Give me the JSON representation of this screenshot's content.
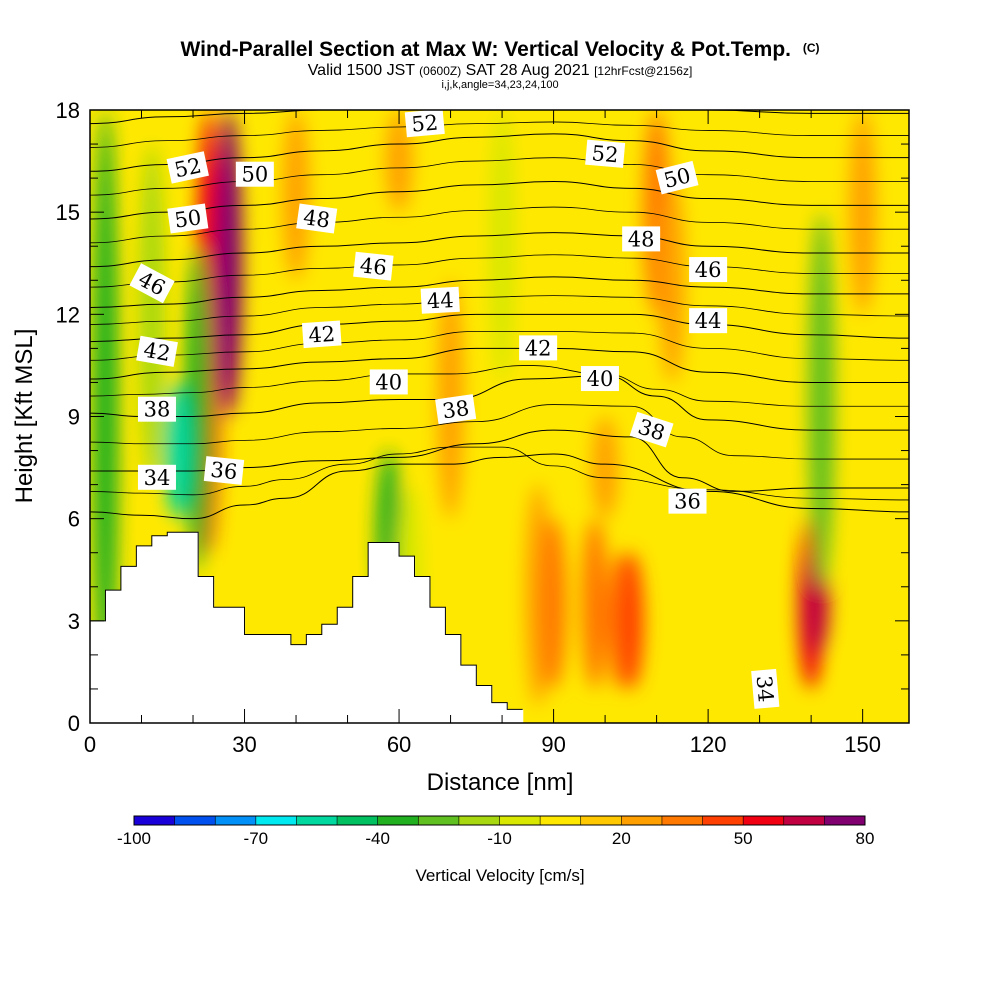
{
  "chart_data": {
    "type": "heatmap",
    "title": "Wind-Parallel Section at Max W: Vertical Velocity & Pot.Temp.",
    "title_mark": "(C)",
    "subtitle_parts": {
      "valid": "Valid 1500 JST",
      "utc": "(0600Z)",
      "date": "SAT 28 Aug 2021",
      "forecast": "[12hrFcst@2156z]"
    },
    "subtitle2": "i,j,k,angle=34,23,24,100",
    "xlabel": "Distance [nm]",
    "ylabel": "Height [Kft MSL]",
    "xlim": [
      0,
      159
    ],
    "ylim": [
      0,
      18
    ],
    "x_ticks": [
      0,
      30,
      60,
      90,
      120,
      150
    ],
    "y_ticks": [
      0,
      3,
      6,
      9,
      12,
      15,
      18
    ],
    "colorbar": {
      "label": "Vertical Velocity [cm/s]",
      "boundaries": [
        -100,
        -90,
        -80,
        -70,
        -60,
        -50,
        -40,
        -30,
        -20,
        -10,
        0,
        10,
        20,
        30,
        40,
        50,
        60,
        70,
        80
      ],
      "tick_labels": [
        "-100",
        "-70",
        "-40",
        "-10",
        "20",
        "50",
        "80"
      ],
      "colors": [
        "#1a00d8",
        "#0050f0",
        "#0090f8",
        "#00e8f0",
        "#00d8a0",
        "#00c060",
        "#20b020",
        "#60c020",
        "#a8d810",
        "#d8e800",
        "#ffe800",
        "#ffc800",
        "#ffa000",
        "#ff7800",
        "#ff4000",
        "#f00010",
        "#c00040",
        "#800070"
      ]
    },
    "background_level": "0 to 10 cm/s",
    "vertical_velocity_features": [
      {
        "x": 3,
        "z_range": [
          0.5,
          18
        ],
        "w": -40
      },
      {
        "x": 12,
        "z_range": [
          7,
          17
        ],
        "w": -20
      },
      {
        "x": 23,
        "z_range": [
          5,
          18
        ],
        "w": 50
      },
      {
        "x": 27,
        "z_range": [
          9,
          18
        ],
        "w": 70
      },
      {
        "x": 21,
        "z_range": [
          4.5,
          14
        ],
        "w": -40
      },
      {
        "x": 17,
        "z_range": [
          6,
          10
        ],
        "w": -60
      },
      {
        "x": 58,
        "z_range": [
          3,
          8
        ],
        "w": -40
      },
      {
        "x": 62,
        "z_range": [
          1,
          7
        ],
        "w": -10
      },
      {
        "x": 40,
        "z_range": [
          13,
          18
        ],
        "w": 20
      },
      {
        "x": 60,
        "z_range": [
          15,
          18
        ],
        "w": 20
      },
      {
        "x": 70,
        "z_range": [
          6,
          13
        ],
        "w": 20
      },
      {
        "x": 80,
        "z_range": [
          10,
          18
        ],
        "w": -10
      },
      {
        "x": 87,
        "z_range": [
          0.5,
          7
        ],
        "w": 20
      },
      {
        "x": 90,
        "z_range": [
          1,
          6
        ],
        "w": 30
      },
      {
        "x": 98,
        "z_range": [
          1,
          6
        ],
        "w": 30
      },
      {
        "x": 103,
        "z_range": [
          1,
          5
        ],
        "w": 30
      },
      {
        "x": 100,
        "z_range": [
          6,
          9
        ],
        "w": 20
      },
      {
        "x": 105,
        "z_range": [
          1,
          5
        ],
        "w": 40
      },
      {
        "x": 110,
        "z_range": [
          12,
          18
        ],
        "w": 30
      },
      {
        "x": 113,
        "z_range": [
          10,
          16
        ],
        "w": 20
      },
      {
        "x": 140,
        "z_range": [
          1,
          6
        ],
        "w": 50
      },
      {
        "x": 141,
        "z_range": [
          2,
          5
        ],
        "w": 60
      },
      {
        "x": 142,
        "z_range": [
          4,
          15
        ],
        "w": -30
      },
      {
        "x": 150,
        "z_range": [
          12,
          18
        ],
        "w": 20
      }
    ],
    "terrain_blocks": [
      {
        "x": [
          0,
          3
        ],
        "top": 3.0
      },
      {
        "x": [
          3,
          6
        ],
        "top": 3.9
      },
      {
        "x": [
          6,
          9
        ],
        "top": 4.6
      },
      {
        "x": [
          9,
          12
        ],
        "top": 5.2
      },
      {
        "x": [
          12,
          15
        ],
        "top": 5.5
      },
      {
        "x": [
          15,
          18
        ],
        "top": 5.6
      },
      {
        "x": [
          18,
          21
        ],
        "top": 5.6
      },
      {
        "x": [
          21,
          24
        ],
        "top": 4.3
      },
      {
        "x": [
          24,
          27
        ],
        "top": 3.4
      },
      {
        "x": [
          27,
          30
        ],
        "top": 3.4
      },
      {
        "x": [
          30,
          33
        ],
        "top": 2.6
      },
      {
        "x": [
          33,
          36
        ],
        "top": 2.6
      },
      {
        "x": [
          36,
          39
        ],
        "top": 2.6
      },
      {
        "x": [
          39,
          42
        ],
        "top": 2.3
      },
      {
        "x": [
          42,
          45
        ],
        "top": 2.6
      },
      {
        "x": [
          45,
          48
        ],
        "top": 2.9
      },
      {
        "x": [
          48,
          51
        ],
        "top": 3.4
      },
      {
        "x": [
          51,
          54
        ],
        "top": 4.3
      },
      {
        "x": [
          54,
          57
        ],
        "top": 5.3
      },
      {
        "x": [
          57,
          60
        ],
        "top": 5.3
      },
      {
        "x": [
          60,
          63
        ],
        "top": 4.9
      },
      {
        "x": [
          63,
          66
        ],
        "top": 4.3
      },
      {
        "x": [
          66,
          69
        ],
        "top": 3.4
      },
      {
        "x": [
          69,
          72
        ],
        "top": 2.6
      },
      {
        "x": [
          72,
          75
        ],
        "top": 1.7
      },
      {
        "x": [
          75,
          78
        ],
        "top": 1.1
      },
      {
        "x": [
          78,
          81
        ],
        "top": 0.6
      },
      {
        "x": [
          81,
          84
        ],
        "top": 0.4
      }
    ],
    "theta_contours": [
      {
        "level": 34,
        "points": [
          [
            0,
            6.2
          ],
          [
            10,
            6.1
          ],
          [
            20,
            6.0
          ],
          [
            30,
            6.4
          ],
          [
            38,
            6.6
          ],
          [
            50,
            7.4
          ],
          [
            60,
            7.6
          ],
          [
            70,
            7.6
          ],
          [
            80,
            7.8
          ],
          [
            90,
            7.9
          ],
          [
            100,
            7.6
          ],
          [
            120,
            6.8
          ],
          [
            140,
            6.3
          ],
          [
            159,
            6.2
          ]
        ]
      },
      {
        "level": 36,
        "points": [
          [
            0,
            7.4
          ],
          [
            10,
            7.4
          ],
          [
            20,
            7.4
          ],
          [
            30,
            7.5
          ],
          [
            45,
            7.7
          ],
          [
            60,
            7.8
          ],
          [
            75,
            8.2
          ],
          [
            90,
            8.6
          ],
          [
            105,
            8.4
          ],
          [
            115,
            7.2
          ],
          [
            125,
            6.8
          ],
          [
            140,
            6.9
          ],
          [
            159,
            6.9
          ]
        ]
      },
      {
        "level": 38,
        "points": [
          [
            0,
            9.1
          ],
          [
            10,
            9.0
          ],
          [
            20,
            9.0
          ],
          [
            30,
            9.1
          ],
          [
            45,
            9.4
          ],
          [
            60,
            9.5
          ],
          [
            70,
            9.5
          ],
          [
            85,
            10.1
          ],
          [
            100,
            10.2
          ],
          [
            110,
            9.6
          ],
          [
            120,
            8.9
          ],
          [
            140,
            8.6
          ],
          [
            159,
            8.6
          ]
        ]
      },
      {
        "level": 40,
        "points": [
          [
            0,
            10.1
          ],
          [
            15,
            10.3
          ],
          [
            30,
            10.4
          ],
          [
            45,
            10.6
          ],
          [
            60,
            10.7
          ],
          [
            75,
            11.0
          ],
          [
            90,
            11.0
          ],
          [
            105,
            10.9
          ],
          [
            120,
            10.3
          ],
          [
            140,
            10.0
          ],
          [
            159,
            10.0
          ]
        ]
      },
      {
        "level": 42,
        "points": [
          [
            0,
            11.2
          ],
          [
            15,
            11.3
          ],
          [
            30,
            11.4
          ],
          [
            45,
            11.7
          ],
          [
            60,
            11.8
          ],
          [
            75,
            12.0
          ],
          [
            90,
            12.0
          ],
          [
            105,
            12.0
          ],
          [
            120,
            11.7
          ],
          [
            140,
            11.4
          ],
          [
            159,
            11.3
          ]
        ]
      },
      {
        "level": 44,
        "points": [
          [
            0,
            12.2
          ],
          [
            15,
            12.3
          ],
          [
            30,
            12.5
          ],
          [
            45,
            12.7
          ],
          [
            60,
            12.8
          ],
          [
            75,
            13.0
          ],
          [
            90,
            13.1
          ],
          [
            105,
            13.0
          ],
          [
            120,
            12.8
          ],
          [
            140,
            12.6
          ],
          [
            159,
            12.6
          ]
        ]
      },
      {
        "level": 46,
        "points": [
          [
            0,
            13.4
          ],
          [
            15,
            13.6
          ],
          [
            30,
            13.8
          ],
          [
            45,
            14.0
          ],
          [
            60,
            14.1
          ],
          [
            75,
            14.3
          ],
          [
            90,
            14.4
          ],
          [
            105,
            14.3
          ],
          [
            120,
            14.0
          ],
          [
            140,
            13.8
          ],
          [
            159,
            13.8
          ]
        ]
      },
      {
        "level": 48,
        "points": [
          [
            0,
            14.8
          ],
          [
            15,
            15.0
          ],
          [
            30,
            15.2
          ],
          [
            45,
            15.4
          ],
          [
            60,
            15.6
          ],
          [
            75,
            15.8
          ],
          [
            90,
            15.9
          ],
          [
            105,
            15.7
          ],
          [
            120,
            15.4
          ],
          [
            140,
            15.2
          ],
          [
            159,
            15.2
          ]
        ]
      },
      {
        "level": 50,
        "points": [
          [
            0,
            16.2
          ],
          [
            15,
            16.4
          ],
          [
            30,
            16.6
          ],
          [
            45,
            16.8
          ],
          [
            60,
            17.0
          ],
          [
            75,
            17.2
          ],
          [
            90,
            17.3
          ],
          [
            105,
            17.1
          ],
          [
            120,
            16.8
          ],
          [
            140,
            16.6
          ],
          [
            159,
            16.6
          ]
        ]
      },
      {
        "level": 52,
        "points": [
          [
            0,
            17.6
          ],
          [
            15,
            17.8
          ],
          [
            30,
            17.9
          ],
          [
            45,
            18.0
          ],
          [
            60,
            18.0
          ],
          [
            75,
            18.0
          ],
          [
            90,
            18.0
          ],
          [
            105,
            18.0
          ],
          [
            120,
            18.0
          ],
          [
            140,
            17.9
          ],
          [
            159,
            17.9
          ]
        ]
      }
    ],
    "contour_labels": [
      {
        "text": "52",
        "x": 19,
        "y": 16.3,
        "rot": -12
      },
      {
        "text": "50",
        "x": 32,
        "y": 16.1,
        "rot": 0
      },
      {
        "text": "52",
        "x": 65,
        "y": 17.6,
        "rot": -5
      },
      {
        "text": "52",
        "x": 100,
        "y": 16.7,
        "rot": 5
      },
      {
        "text": "50",
        "x": 114,
        "y": 16.0,
        "rot": -14
      },
      {
        "text": "50",
        "x": 19,
        "y": 14.8,
        "rot": -8
      },
      {
        "text": "48",
        "x": 44,
        "y": 14.8,
        "rot": 8
      },
      {
        "text": "48",
        "x": 107,
        "y": 14.2,
        "rot": 0
      },
      {
        "text": "46",
        "x": 12,
        "y": 12.9,
        "rot": 28
      },
      {
        "text": "46",
        "x": 55,
        "y": 13.4,
        "rot": 6
      },
      {
        "text": "46",
        "x": 120,
        "y": 13.3,
        "rot": 0
      },
      {
        "text": "44",
        "x": 68,
        "y": 12.4,
        "rot": -3
      },
      {
        "text": "44",
        "x": 120,
        "y": 11.8,
        "rot": 0
      },
      {
        "text": "42",
        "x": 13,
        "y": 10.9,
        "rot": 10
      },
      {
        "text": "42",
        "x": 45,
        "y": 11.4,
        "rot": -4
      },
      {
        "text": "42",
        "x": 87,
        "y": 11.0,
        "rot": 0
      },
      {
        "text": "40",
        "x": 58,
        "y": 10.0,
        "rot": 0
      },
      {
        "text": "40",
        "x": 99,
        "y": 10.1,
        "rot": 0
      },
      {
        "text": "38",
        "x": 13,
        "y": 9.2,
        "rot": 0
      },
      {
        "text": "38",
        "x": 71,
        "y": 9.2,
        "rot": -8
      },
      {
        "text": "38",
        "x": 109,
        "y": 8.6,
        "rot": 18
      },
      {
        "text": "36",
        "x": 26,
        "y": 7.4,
        "rot": 6
      },
      {
        "text": "36",
        "x": 116,
        "y": 6.5,
        "rot": 0
      },
      {
        "text": "34",
        "x": 13,
        "y": 7.2,
        "rot": 0
      },
      {
        "text": "34",
        "x": 131,
        "y": 1.0,
        "rot": 85
      }
    ]
  }
}
